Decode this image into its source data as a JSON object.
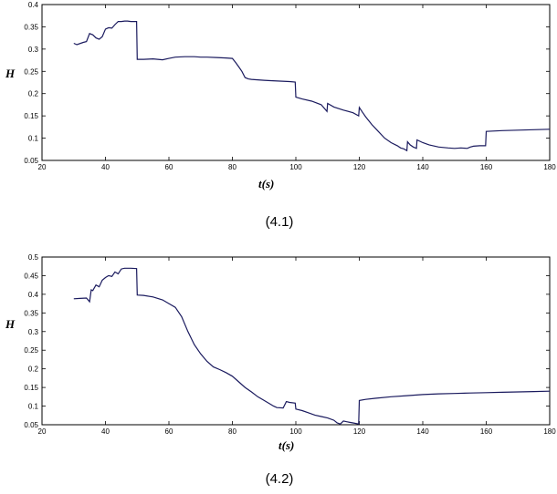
{
  "figure_captions": [
    "(4.1)",
    "(4.2)"
  ],
  "chart_data": [
    {
      "type": "line",
      "ylabel": "H",
      "xlabel_main": "t",
      "xlabel_unit": "(s)",
      "xlim": [
        20,
        180
      ],
      "ylim": [
        0.05,
        0.4
      ],
      "xticks": [
        20,
        40,
        60,
        80,
        100,
        120,
        140,
        160,
        180
      ],
      "yticks": [
        0.05,
        0.1,
        0.15,
        0.2,
        0.25,
        0.3,
        0.35,
        0.4
      ],
      "grid": false,
      "line_color": "#1a1a5e",
      "series": [
        {
          "x": [
            30,
            31,
            33,
            34,
            35,
            36,
            37,
            38,
            39,
            40,
            41,
            42,
            43,
            44,
            45,
            46,
            47,
            48,
            49,
            49.8,
            50,
            52,
            55,
            58,
            60,
            62,
            65,
            68,
            70,
            72,
            75,
            78,
            80,
            81,
            82,
            83,
            84,
            85,
            86,
            88,
            90,
            92,
            95,
            98,
            99.8,
            100,
            102,
            105,
            108,
            109.8,
            110,
            112,
            115,
            118,
            119.8,
            120,
            121,
            122,
            124,
            126,
            128,
            130,
            132,
            133,
            134,
            135,
            135.2,
            136,
            137,
            138,
            138.2,
            140,
            142,
            145,
            148,
            150,
            152,
            154,
            155,
            156,
            158,
            159.8,
            160,
            165,
            170,
            175,
            180
          ],
          "y": [
            0.313,
            0.31,
            0.315,
            0.317,
            0.335,
            0.332,
            0.325,
            0.322,
            0.328,
            0.345,
            0.348,
            0.347,
            0.355,
            0.362,
            0.362,
            0.363,
            0.363,
            0.362,
            0.362,
            0.362,
            0.277,
            0.277,
            0.278,
            0.276,
            0.279,
            0.282,
            0.283,
            0.283,
            0.282,
            0.282,
            0.281,
            0.28,
            0.279,
            0.27,
            0.26,
            0.25,
            0.236,
            0.233,
            0.232,
            0.231,
            0.23,
            0.229,
            0.228,
            0.227,
            0.226,
            0.192,
            0.188,
            0.183,
            0.175,
            0.16,
            0.178,
            0.17,
            0.163,
            0.157,
            0.15,
            0.169,
            0.158,
            0.148,
            0.13,
            0.115,
            0.1,
            0.09,
            0.083,
            0.078,
            0.076,
            0.072,
            0.092,
            0.085,
            0.08,
            0.077,
            0.096,
            0.09,
            0.085,
            0.08,
            0.078,
            0.077,
            0.078,
            0.077,
            0.08,
            0.082,
            0.083,
            0.083,
            0.115,
            0.117,
            0.118,
            0.119,
            0.12
          ]
        }
      ]
    },
    {
      "type": "line",
      "ylabel": "H",
      "xlabel_main": "t",
      "xlabel_unit": "(s)",
      "xlim": [
        20,
        180
      ],
      "ylim": [
        0.05,
        0.5
      ],
      "xticks": [
        20,
        40,
        60,
        80,
        100,
        120,
        140,
        160,
        180
      ],
      "yticks": [
        0.05,
        0.1,
        0.15,
        0.2,
        0.25,
        0.3,
        0.35,
        0.4,
        0.45,
        0.5
      ],
      "grid": false,
      "line_color": "#1a1a5e",
      "series": [
        {
          "x": [
            30,
            32,
            34,
            35,
            35.5,
            36,
            37,
            38,
            39,
            40,
            41,
            42,
            43,
            44,
            45,
            46,
            48,
            49.8,
            50,
            52,
            55,
            58,
            60,
            62,
            64,
            66,
            68,
            70,
            72,
            74,
            76,
            78,
            80,
            82,
            84,
            86,
            88,
            90,
            92,
            93,
            94,
            96,
            97,
            98,
            99.8,
            100,
            102,
            104,
            106,
            108,
            110,
            112,
            113,
            114,
            115,
            116,
            118,
            119.8,
            120,
            122,
            125,
            130,
            135,
            140,
            145,
            150,
            155,
            160,
            165,
            170,
            175,
            180
          ],
          "y": [
            0.388,
            0.389,
            0.39,
            0.38,
            0.412,
            0.41,
            0.425,
            0.42,
            0.438,
            0.445,
            0.45,
            0.448,
            0.46,
            0.455,
            0.468,
            0.47,
            0.47,
            0.469,
            0.398,
            0.397,
            0.393,
            0.385,
            0.375,
            0.365,
            0.34,
            0.3,
            0.265,
            0.24,
            0.22,
            0.205,
            0.198,
            0.19,
            0.18,
            0.165,
            0.15,
            0.138,
            0.125,
            0.115,
            0.105,
            0.1,
            0.096,
            0.095,
            0.112,
            0.11,
            0.108,
            0.092,
            0.088,
            0.082,
            0.076,
            0.072,
            0.068,
            0.062,
            0.055,
            0.052,
            0.06,
            0.058,
            0.055,
            0.052,
            0.115,
            0.118,
            0.121,
            0.125,
            0.128,
            0.131,
            0.133,
            0.134,
            0.135,
            0.136,
            0.137,
            0.138,
            0.139,
            0.14
          ]
        }
      ]
    }
  ]
}
